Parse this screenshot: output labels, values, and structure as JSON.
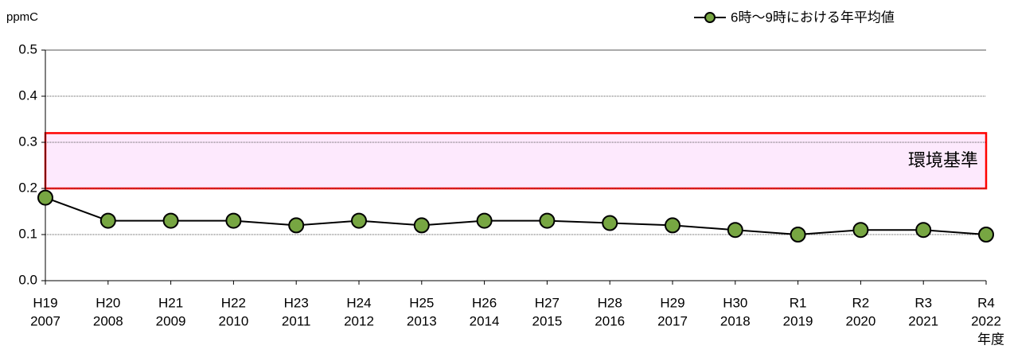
{
  "chart_data": {
    "type": "line",
    "y_label": "ppmC",
    "x_label": "年度",
    "categories": [
      [
        "H19",
        "2007"
      ],
      [
        "H20",
        "2008"
      ],
      [
        "H21",
        "2009"
      ],
      [
        "H22",
        "2010"
      ],
      [
        "H23",
        "2011"
      ],
      [
        "H24",
        "2012"
      ],
      [
        "H25",
        "2013"
      ],
      [
        "H26",
        "2014"
      ],
      [
        "H27",
        "2015"
      ],
      [
        "H28",
        "2016"
      ],
      [
        "H29",
        "2017"
      ],
      [
        "H30",
        "2018"
      ],
      [
        "R1",
        "2019"
      ],
      [
        "R2",
        "2020"
      ],
      [
        "R3",
        "2021"
      ],
      [
        "R4",
        "2022"
      ]
    ],
    "series": [
      {
        "name": "6時～9時における年平均値",
        "color": "#77a642",
        "values": [
          0.18,
          0.13,
          0.13,
          0.13,
          0.12,
          0.13,
          0.12,
          0.13,
          0.13,
          0.125,
          0.12,
          0.11,
          0.1,
          0.11,
          0.11,
          0.1
        ]
      }
    ],
    "bands": [
      {
        "label": "環境基準",
        "range": [
          0.2,
          0.32
        ],
        "color": "#ff0000",
        "fill": "#fde9fd"
      }
    ],
    "ylim": [
      0,
      0.5
    ],
    "yticks": [
      {
        "value": 0,
        "label": "0.0"
      },
      0.1,
      0.2,
      0.3,
      0.4,
      0.5
    ],
    "grid": true,
    "legend": "top-right"
  }
}
